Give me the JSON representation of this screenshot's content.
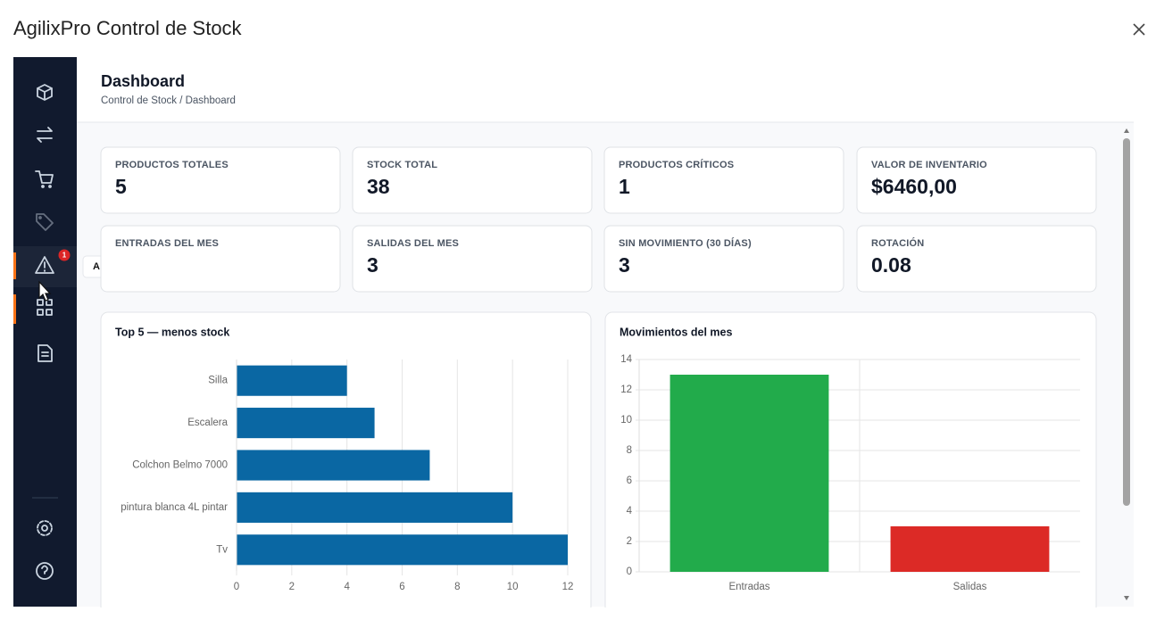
{
  "window": {
    "title": "AgilixPro Control de Stock"
  },
  "header": {
    "title": "Dashboard",
    "breadcrumb": "Control de Stock / Dashboard"
  },
  "sidebar": {
    "badge": "1",
    "tooltip": "Alertas"
  },
  "kpis": [
    {
      "label": "PRODUCTOS TOTALES",
      "value": "5"
    },
    {
      "label": "STOCK TOTAL",
      "value": "38"
    },
    {
      "label": "PRODUCTOS CRÍTICOS",
      "value": "1"
    },
    {
      "label": "VALOR DE INVENTARIO",
      "value": "$6460,00"
    },
    {
      "label": "ENTRADAS DEL MES"
    },
    {
      "label": "SALIDAS DEL MES",
      "value": "3"
    },
    {
      "label": "SIN MOVIMIENTO (30 DÍAS)",
      "value": "3"
    },
    {
      "label": "ROTACIÓN",
      "value": "0.08"
    }
  ],
  "chart_data": [
    {
      "type": "bar",
      "horizontal": true,
      "title": "Top 5 — menos stock",
      "categories": [
        "Silla",
        "Escalera",
        "Colchon Belmo 7000",
        "pintura blanca 4L pintar",
        "Tv"
      ],
      "values": [
        4,
        5,
        7,
        10,
        12
      ],
      "color": "#0a67a3",
      "xlim": [
        0,
        12
      ],
      "xticks": [
        0,
        2,
        4,
        6,
        8,
        10,
        12
      ],
      "grid": true
    },
    {
      "type": "bar",
      "horizontal": false,
      "title": "Movimientos del mes",
      "categories": [
        "Entradas",
        "Salidas"
      ],
      "values": [
        13,
        3
      ],
      "colors": [
        "#22ab4b",
        "#dc2a26"
      ],
      "ylim": [
        0,
        14
      ],
      "yticks": [
        0,
        2,
        4,
        6,
        8,
        10,
        12,
        14
      ],
      "grid": true
    }
  ]
}
